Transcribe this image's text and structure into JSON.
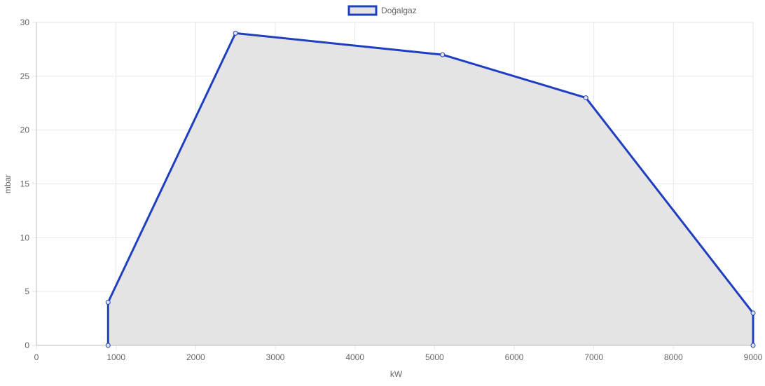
{
  "chart_data": {
    "type": "area",
    "legend": {
      "position": "top",
      "entries": [
        {
          "label": "Doğalgaz",
          "stroke": "#1f3fbf",
          "fill": "#e4e4e4"
        }
      ]
    },
    "xlabel": "kW",
    "ylabel": "mbar",
    "xlim": [
      0,
      9000
    ],
    "ylim": [
      0,
      30
    ],
    "xticks": [
      0,
      1000,
      2000,
      3000,
      4000,
      5000,
      6000,
      7000,
      8000,
      9000
    ],
    "yticks": [
      0,
      5,
      10,
      15,
      20,
      25,
      30
    ],
    "grid": true,
    "series": [
      {
        "name": "Doğalgaz",
        "color": "#1f3fbf",
        "fill": "#e4e4e4",
        "points": [
          {
            "x": 900,
            "y": 0
          },
          {
            "x": 900,
            "y": 4
          },
          {
            "x": 2500,
            "y": 29
          },
          {
            "x": 5100,
            "y": 27
          },
          {
            "x": 6900,
            "y": 23
          },
          {
            "x": 9000,
            "y": 3
          },
          {
            "x": 9000,
            "y": 0
          }
        ]
      }
    ]
  }
}
